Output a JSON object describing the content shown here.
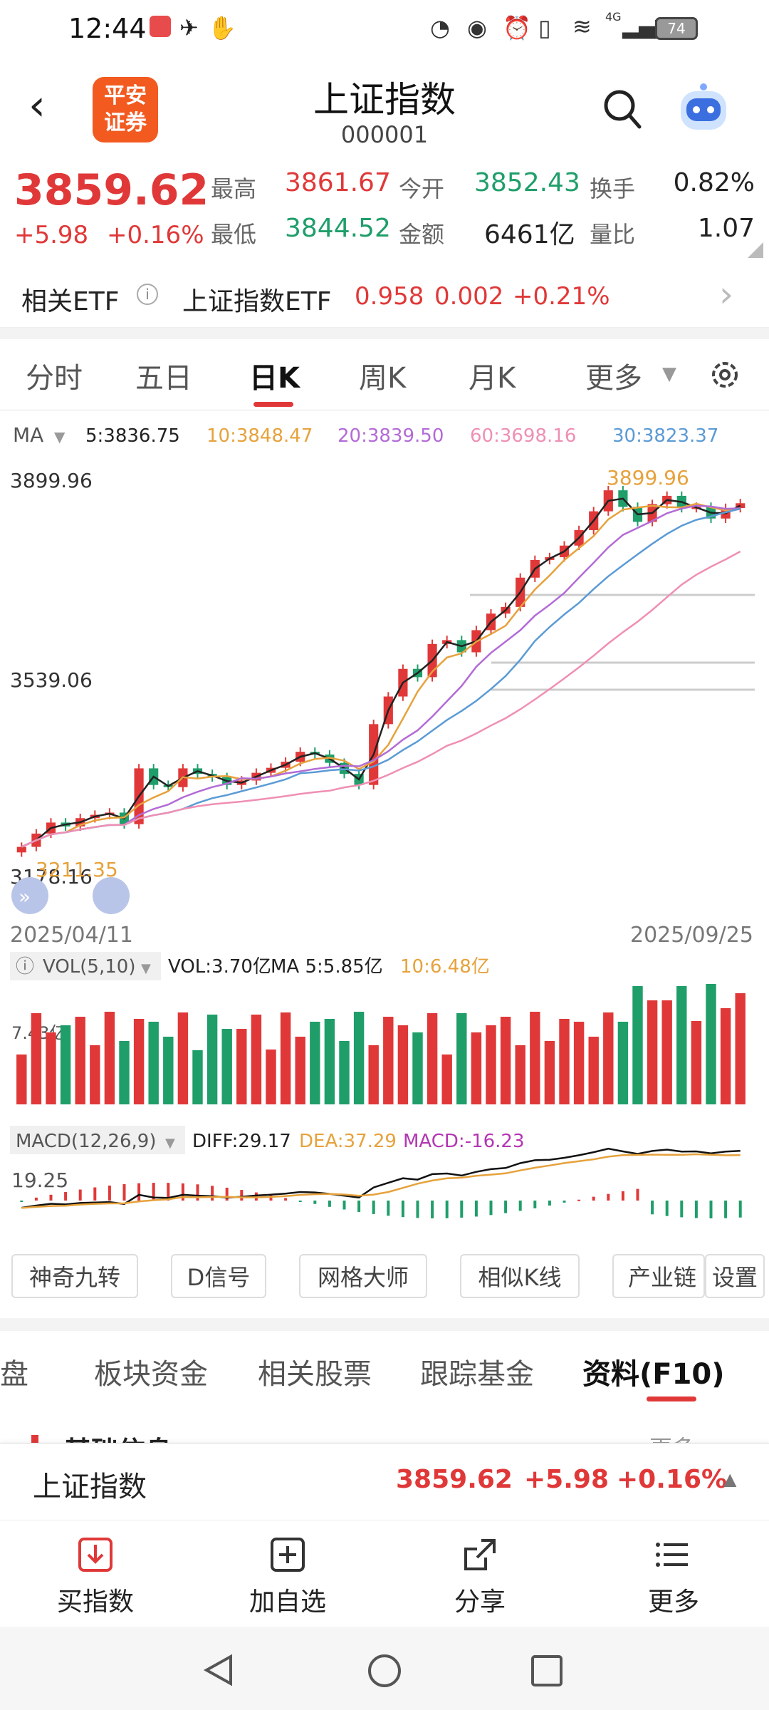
{
  "status": {
    "time": "12:44",
    "battery": "74",
    "network": "4G"
  },
  "header": {
    "title": "上证指数",
    "code": "000001",
    "logo_line1": "平安",
    "logo_line2": "证券"
  },
  "quote": {
    "price": "3859.62",
    "change": "+5.98",
    "change_pct": "+0.16%",
    "high_label": "最高",
    "high": "3861.67",
    "open_label": "今开",
    "open": "3852.43",
    "turnover_label": "换手",
    "turnover": "0.82%",
    "low_label": "最低",
    "low": "3844.52",
    "amount_label": "金额",
    "amount": "6461亿",
    "volratio_label": "量比",
    "volratio": "1.07"
  },
  "etf": {
    "label": "相关ETF",
    "name": "上证指数ETF",
    "price": "0.958",
    "change": "0.002",
    "pct": "+0.21%"
  },
  "tabs": [
    "分时",
    "五日",
    "日K",
    "周K",
    "月K",
    "更多"
  ],
  "ma": {
    "label": "MA",
    "ma5": "5:3836.75",
    "ma10": "10:3848.47",
    "ma20": "20:3839.50",
    "ma60": "60:3698.16",
    "ma30": "30:3823.37"
  },
  "chart_axis": {
    "high": "3899.96",
    "mid": "3539.06",
    "low": "3178.16",
    "max_mark": "3899.96",
    "min_mark": "3211.35",
    "start_date": "2025/04/11",
    "end_date": "2025/09/25"
  },
  "vol": {
    "label": "VOL(5,10)",
    "vol": "VOL:3.70亿",
    "ma5": "MA 5:5.85亿",
    "ma10": "10:6.48亿",
    "axis": "7.43亿"
  },
  "macd": {
    "label": "MACD(12,26,9)",
    "diff": "DIFF:29.17",
    "dea": "DEA:37.29",
    "macd": "MACD:-16.23",
    "axis": "19.25"
  },
  "tools": [
    "神奇九转",
    "D信号",
    "网格大师",
    "相似K线",
    "产业链",
    "设置"
  ],
  "tabs2": [
    "盯盘",
    "板块资金",
    "相关股票",
    "跟踪基金",
    "资料(F10)"
  ],
  "section": {
    "title": "基础信息",
    "more": "更多"
  },
  "pinned": {
    "name": "上证指数",
    "price": "3859.62",
    "change": "+5.98",
    "pct": "+0.16%"
  },
  "actions": [
    "买指数",
    "加自选",
    "分享",
    "更多"
  ],
  "colors": {
    "up": "#e03838",
    "down": "#1f9e6a",
    "accent": "#e03838",
    "ma5": "#222222",
    "ma10": "#e6a23c",
    "ma20": "#b36bd6",
    "ma30": "#5b9bd5",
    "ma60": "#ef8fb4"
  },
  "chart_data": {
    "type": "candlestick",
    "title": "上证指数 日K",
    "x_start": "2025/04/11",
    "x_end": "2025/09/25",
    "ylim": [
      3178.16,
      3899.96
    ],
    "series": [
      {
        "name": "close",
        "values": [
          3238,
          3262,
          3282,
          3275,
          3290,
          3296,
          3300,
          3279,
          3380,
          3350,
          3346,
          3380,
          3370,
          3364,
          3350,
          3358,
          3372,
          3381,
          3392,
          3410,
          3405,
          3390,
          3370,
          3350,
          3460,
          3510,
          3560,
          3545,
          3605,
          3612,
          3590,
          3630,
          3660,
          3672,
          3725,
          3757,
          3762,
          3783,
          3811,
          3845,
          3883,
          3853,
          3826,
          3858,
          3873,
          3851,
          3853,
          3832,
          3851,
          3859.62
        ]
      }
    ]
  }
}
